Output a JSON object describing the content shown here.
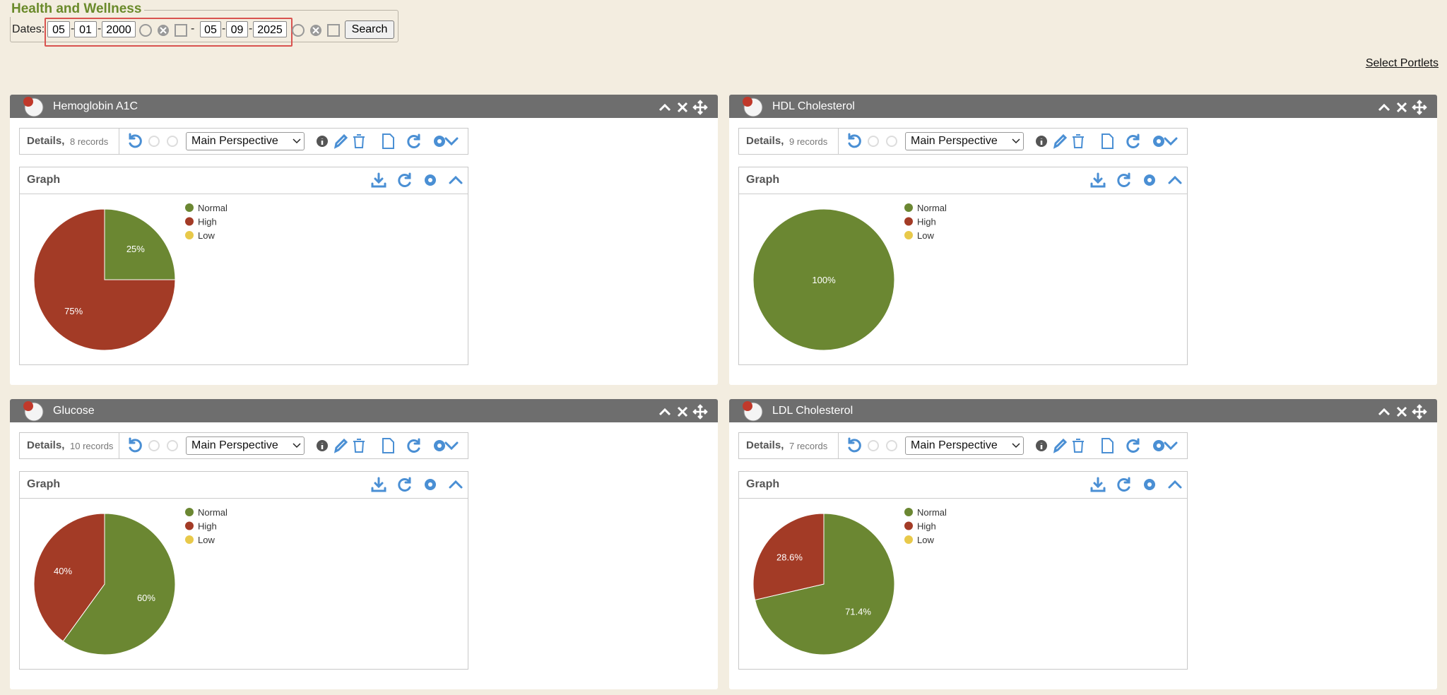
{
  "header": {
    "title": "Health and Wellness",
    "dates_label": "Dates:",
    "separator": "-",
    "start": {
      "month": "05",
      "day": "01",
      "year": "2000"
    },
    "end": {
      "month": "05",
      "day": "09",
      "year": "2025"
    },
    "search": "Search"
  },
  "select_portlets": "Select Portlets",
  "portlets": [
    {
      "title": "Hemoglobin A1C",
      "details_label": "Details,",
      "records": "8 records",
      "perspective": "Main Perspective"
    },
    {
      "title": "HDL Cholesterol",
      "details_label": "Details,",
      "records": "9 records",
      "perspective": "Main Perspective"
    },
    {
      "title": "Glucose",
      "details_label": "Details,",
      "records": "10 records",
      "perspective": "Main Perspective"
    },
    {
      "title": "LDL Cholesterol",
      "details_label": "Details,",
      "records": "7 records",
      "perspective": "Main Perspective"
    }
  ],
  "chart_data": [
    {
      "type": "pie",
      "title": "Graph",
      "categories": [
        "Normal",
        "High",
        "Low"
      ],
      "colors": [
        "#6b8732",
        "#a33b26",
        "#e8c94a"
      ],
      "values": [
        25,
        75,
        0
      ],
      "value_labels": [
        "25%",
        "75%",
        null
      ]
    },
    {
      "type": "pie",
      "title": "Graph",
      "categories": [
        "Normal",
        "High",
        "Low"
      ],
      "colors": [
        "#6b8732",
        "#a33b26",
        "#e8c94a"
      ],
      "values": [
        100,
        0,
        0
      ],
      "value_labels": [
        "100%",
        null,
        null
      ]
    },
    {
      "type": "pie",
      "title": "Graph",
      "categories": [
        "Normal",
        "High",
        "Low"
      ],
      "colors": [
        "#6b8732",
        "#a33b26",
        "#e8c94a"
      ],
      "values": [
        60,
        40,
        0
      ],
      "value_labels": [
        "60%",
        "40%",
        null
      ]
    },
    {
      "type": "pie",
      "title": "Graph",
      "categories": [
        "Normal",
        "High",
        "Low"
      ],
      "colors": [
        "#6b8732",
        "#a33b26",
        "#e8c94a"
      ],
      "values": [
        71.4,
        28.6,
        0
      ],
      "value_labels": [
        "71.4%",
        "28.6%",
        null
      ]
    }
  ]
}
